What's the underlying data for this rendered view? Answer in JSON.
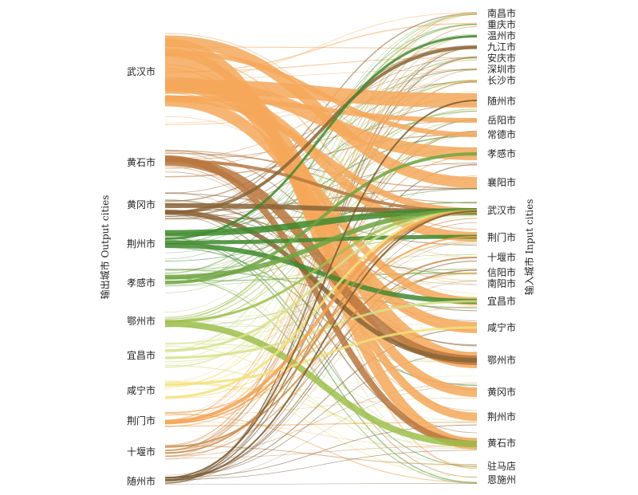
{
  "axis": {
    "left": "输出城市 Output cities",
    "right": "输入城市 Input cities"
  },
  "sources": [
    {
      "name": "武汉市",
      "color": "#f5a85a"
    },
    {
      "name": "黄石市",
      "color": "#b8773e"
    },
    {
      "name": "黄冈市",
      "color": "#8a6436"
    },
    {
      "name": "荆州市",
      "color": "#3f8a2e"
    },
    {
      "name": "孝感市",
      "color": "#6fa542"
    },
    {
      "name": "鄂州市",
      "color": "#9dbf4c"
    },
    {
      "name": "宜昌市",
      "color": "#d6e08a"
    },
    {
      "name": "咸宁市",
      "color": "#f3e07a"
    },
    {
      "name": "荆门市",
      "color": "#f4a04e"
    },
    {
      "name": "十堰市",
      "color": "#c98a4a"
    },
    {
      "name": "随州市",
      "color": "#7a5a33"
    }
  ],
  "targets": [
    {
      "name": "南昌市"
    },
    {
      "name": "重庆市"
    },
    {
      "name": "温州市"
    },
    {
      "name": "九江市"
    },
    {
      "name": "安庆市"
    },
    {
      "name": "深圳市"
    },
    {
      "name": "长沙市"
    },
    {
      "name": "随州市"
    },
    {
      "name": "岳阳市"
    },
    {
      "name": "常德市"
    },
    {
      "name": "孝感市"
    },
    {
      "name": "襄阳市"
    },
    {
      "name": "武汉市"
    },
    {
      "name": "荆门市"
    },
    {
      "name": "十堰市"
    },
    {
      "name": "信阳市"
    },
    {
      "name": "南阳市"
    },
    {
      "name": "宜昌市"
    },
    {
      "name": "咸宁市"
    },
    {
      "name": "鄂州市"
    },
    {
      "name": "黄冈市"
    },
    {
      "name": "荆州市"
    },
    {
      "name": "黄石市"
    },
    {
      "name": "驻马店"
    },
    {
      "name": "恩施州"
    }
  ]
}
